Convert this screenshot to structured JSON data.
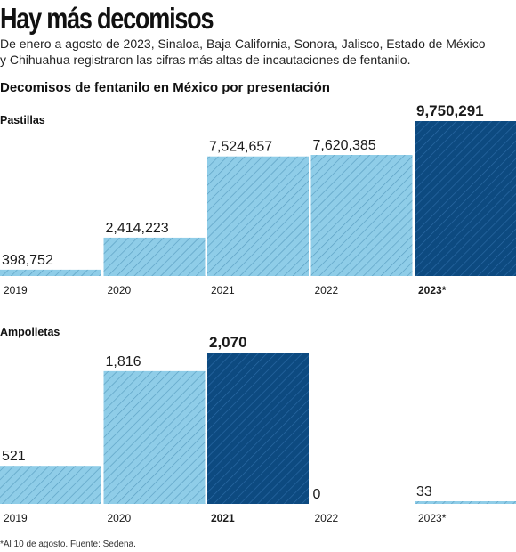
{
  "header": {
    "title": "Hay más decomisos",
    "subtitle_lines": [
      "De enero a agosto de 2023, Sinaloa, Baja California, Sonora, Jalisco, Estado de México",
      "y Chihuahua registraron las cifras más altas de incautaciones de fentanilo."
    ],
    "section_title": "Decomisos de fentanilo en México por presentación"
  },
  "colors": {
    "light_bar": "#8fcde8",
    "dark_bar": "#0d4a80",
    "hatch_light": "#5a9fc2",
    "hatch_dark": "#2b6aa6"
  },
  "chart_data": [
    {
      "type": "bar",
      "title": "Pastillas",
      "categories": [
        "2019",
        "2020",
        "2021",
        "2022",
        "2023*"
      ],
      "values": [
        398752,
        2414223,
        7524657,
        7620385,
        9750291
      ],
      "value_labels": [
        "398,752",
        "2,414,223",
        "7,524,657",
        "7,620,385",
        "9,750,291"
      ],
      "highlight_index": 4,
      "ylim": [
        0,
        9750291
      ]
    },
    {
      "type": "bar",
      "title": "Ampolletas",
      "categories": [
        "2019",
        "2020",
        "2021",
        "2022",
        "2023*"
      ],
      "values": [
        521,
        1816,
        2070,
        0,
        33
      ],
      "value_labels": [
        "521",
        "1,816",
        "2,070",
        "0",
        "33"
      ],
      "highlight_index": 2,
      "ylim": [
        0,
        2070
      ]
    }
  ],
  "footnote": "*Al 10 de agosto. Fuente: Sedena."
}
